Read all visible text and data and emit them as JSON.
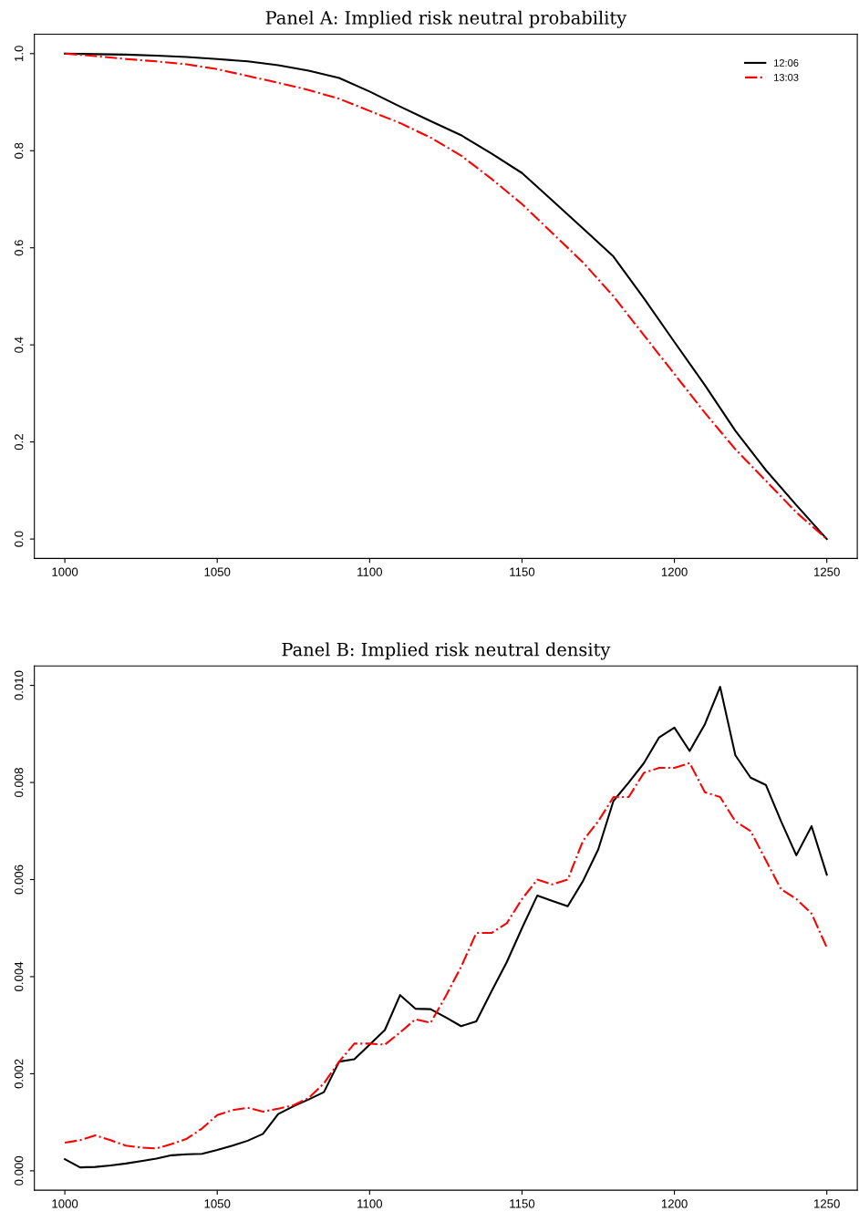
{
  "chart_data": [
    {
      "type": "line",
      "title": "Panel A: Implied risk neutral probability",
      "x": [
        1000,
        1010,
        1020,
        1030,
        1040,
        1050,
        1060,
        1070,
        1080,
        1090,
        1100,
        1110,
        1120,
        1130,
        1140,
        1150,
        1160,
        1170,
        1180,
        1190,
        1200,
        1210,
        1220,
        1230,
        1240,
        1250
      ],
      "series": [
        {
          "name": "12:06",
          "color": "#000000",
          "line_style": "solid",
          "values": [
            1.0,
            0.999,
            0.998,
            0.996,
            0.993,
            0.989,
            0.984,
            0.976,
            0.965,
            0.95,
            0.922,
            0.891,
            0.861,
            0.832,
            0.794,
            0.754,
            0.697,
            0.64,
            0.582,
            0.496,
            0.406,
            0.317,
            0.223,
            0.142,
            0.07,
            0.0
          ]
        },
        {
          "name": "13:03",
          "color": "#ff0000",
          "line_style": "dashdot",
          "values": [
            1.0,
            0.995,
            0.989,
            0.984,
            0.978,
            0.968,
            0.954,
            0.94,
            0.925,
            0.907,
            0.882,
            0.857,
            0.827,
            0.79,
            0.742,
            0.69,
            0.63,
            0.57,
            0.5,
            0.42,
            0.34,
            0.26,
            0.185,
            0.12,
            0.055,
            0.0
          ]
        }
      ],
      "xlim": [
        990,
        1260
      ],
      "xticks": [
        1000,
        1050,
        1100,
        1150,
        1200,
        1250
      ],
      "ylim": [
        -0.04,
        1.04
      ],
      "yticks": [
        {
          "value": 0,
          "label": "0.0"
        },
        {
          "value": 0.2,
          "label": "0.2"
        },
        {
          "value": 0.4,
          "label": "0.4"
        },
        {
          "value": 0.6,
          "label": "0.6"
        },
        {
          "value": 0.8,
          "label": "0.8"
        },
        {
          "value": 1,
          "label": "1.0"
        }
      ],
      "legend": "top right",
      "grid": false,
      "marker": "none"
    },
    {
      "type": "line",
      "title": "Panel B: Implied risk neutral density",
      "x": [
        1000,
        1005,
        1010,
        1015,
        1020,
        1025,
        1030,
        1035,
        1040,
        1045,
        1050,
        1055,
        1060,
        1065,
        1070,
        1075,
        1080,
        1085,
        1090,
        1095,
        1100,
        1105,
        1110,
        1115,
        1120,
        1125,
        1130,
        1135,
        1140,
        1145,
        1150,
        1155,
        1160,
        1165,
        1170,
        1175,
        1180,
        1185,
        1190,
        1195,
        1200,
        1205,
        1210,
        1215,
        1220,
        1225,
        1230,
        1235,
        1240,
        1245,
        1250
      ],
      "series": [
        {
          "color": "#000000",
          "line_style": "solid",
          "values": [
            0.00024,
            7e-05,
            8e-05,
            0.00011,
            0.00015,
            0.0002,
            0.00025,
            0.00032,
            0.00034,
            0.00035,
            0.00043,
            0.00052,
            0.00062,
            0.00076,
            0.00117,
            0.00133,
            0.00147,
            0.00162,
            0.00225,
            0.0023,
            0.0026,
            0.0029,
            0.00362,
            0.00334,
            0.00333,
            0.00316,
            0.00298,
            0.00308,
            0.0037,
            0.0043,
            0.005,
            0.00567,
            0.00556,
            0.00545,
            0.00597,
            0.00662,
            0.00762,
            0.008,
            0.0084,
            0.00893,
            0.00913,
            0.00865,
            0.0092,
            0.00997,
            0.00856,
            0.0081,
            0.00795,
            0.0072,
            0.0065,
            0.0071,
            0.0061
          ]
        },
        {
          "color": "#ff0000",
          "line_style": "dashdot",
          "values": [
            0.00058,
            0.00063,
            0.00073,
            0.00063,
            0.00052,
            0.00048,
            0.00046,
            0.00055,
            0.00066,
            0.00087,
            0.00115,
            0.00125,
            0.0013,
            0.00122,
            0.00128,
            0.00135,
            0.0015,
            0.0018,
            0.00225,
            0.00262,
            0.00262,
            0.0026,
            0.00285,
            0.00312,
            0.00305,
            0.0036,
            0.0042,
            0.0049,
            0.0049,
            0.0051,
            0.0056,
            0.006,
            0.0059,
            0.006,
            0.0068,
            0.0072,
            0.0077,
            0.0077,
            0.0082,
            0.0083,
            0.0083,
            0.0084,
            0.0078,
            0.0077,
            0.0072,
            0.007,
            0.0064,
            0.0058,
            0.0056,
            0.0053,
            0.0046
          ]
        }
      ],
      "xlim": [
        990,
        1260
      ],
      "xticks": [
        1000,
        1050,
        1100,
        1150,
        1200,
        1250
      ],
      "ylim": [
        -0.0004,
        0.0104
      ],
      "yticks": [
        {
          "value": 0,
          "label": "0.000"
        },
        {
          "value": 0.002,
          "label": "0.002"
        },
        {
          "value": 0.004,
          "label": "0.004"
        },
        {
          "value": 0.006,
          "label": "0.006"
        },
        {
          "value": 0.008,
          "label": "0.008"
        },
        {
          "value": 0.01,
          "label": "0.010"
        }
      ],
      "grid": false,
      "marker": "none"
    }
  ]
}
